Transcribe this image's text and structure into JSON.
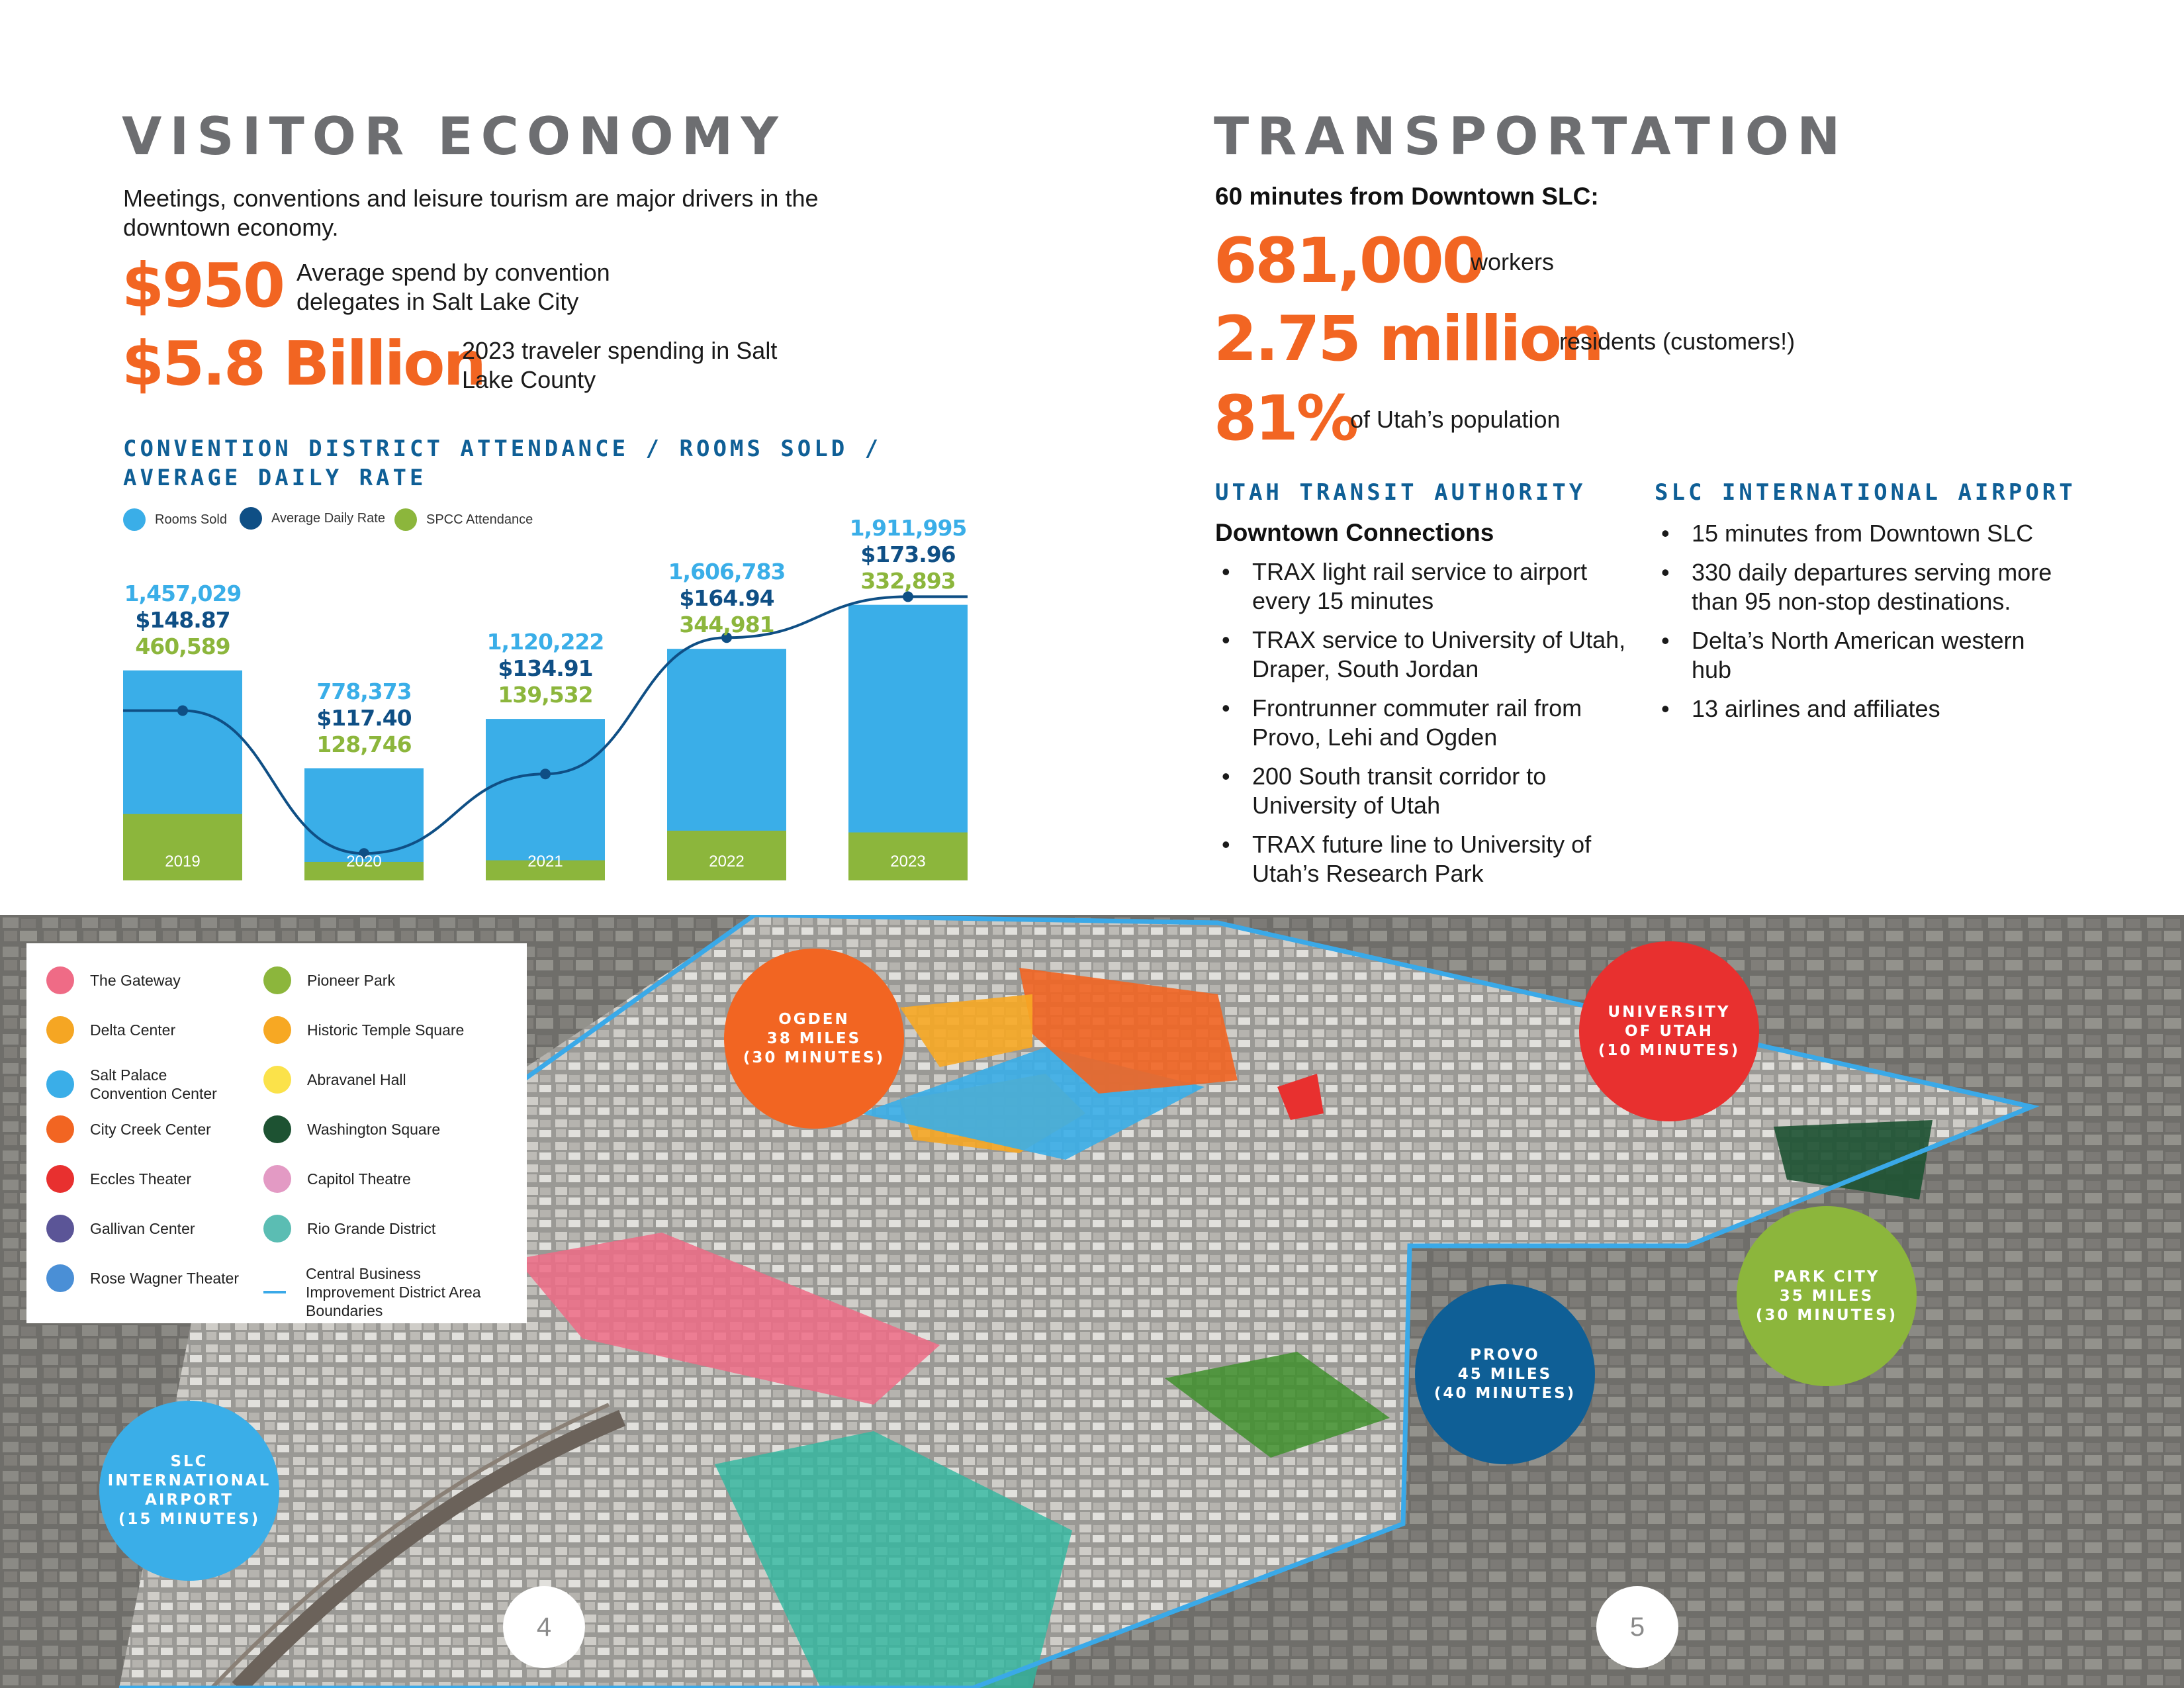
{
  "visitor": {
    "title": "VISITOR ECONOMY",
    "intro": "Meetings, conventions and leisure tourism are major drivers in the downtown economy.",
    "stat1": {
      "value": "$950",
      "desc": "Average spend by convention delegates in Salt Lake City"
    },
    "stat2": {
      "value": "$5.8 Billion",
      "desc": "2023 traveler spending in Salt Lake County"
    }
  },
  "chart_data": {
    "type": "bar",
    "title": "CONVENTION DISTRICT ATTENDANCE / ROOMS SOLD / AVERAGE DAILY RATE",
    "categories": [
      "2019",
      "2020",
      "2021",
      "2022",
      "2023"
    ],
    "series": [
      {
        "name": "Rooms Sold",
        "color": "#3aaee8",
        "values": [
          1457029,
          778373,
          1120222,
          1606783,
          1911995
        ],
        "labels": [
          "1,457,029",
          "778,373",
          "1,120,222",
          "1,606,783",
          "1,911,995"
        ]
      },
      {
        "name": "Average Daily Rate",
        "color": "#0f4f85",
        "values": [
          148.87,
          117.4,
          134.91,
          164.94,
          173.96
        ],
        "labels": [
          "$148.87",
          "$117.40",
          "$134.91",
          "$164.94",
          "$173.96"
        ]
      },
      {
        "name": "SPCC Attendance",
        "color": "#8cb63c",
        "values": [
          460589,
          128746,
          139532,
          344981,
          332893
        ],
        "labels": [
          "460,589",
          "128,746",
          "139,532",
          "344,981",
          "332,893"
        ]
      }
    ],
    "legend_position": "top-left",
    "grid": false
  },
  "transport": {
    "title": "TRANSPORTATION",
    "lead": "60 minutes from Downtown SLC:",
    "stats": [
      {
        "value": "681,000",
        "desc": "workers"
      },
      {
        "value": "2.75 million",
        "desc": "residents (customers!)"
      },
      {
        "value": "81%",
        "desc": "of Utah’s population"
      }
    ],
    "uta": {
      "heading": "UTAH TRANSIT AUTHORITY",
      "subheading": "Downtown Connections",
      "items": [
        "TRAX light rail service to airport every 15 minutes",
        "TRAX service to University of Utah, Draper, South Jordan",
        "Frontrunner commuter rail from Provo, Lehi and Ogden",
        "200 South transit corridor to University of Utah",
        "TRAX future line to University of Utah’s Research Park"
      ]
    },
    "airport": {
      "heading": "SLC INTERNATIONAL AIRPORT",
      "items": [
        "15 minutes from Downtown SLC",
        "330 daily departures serving more than 95 non-stop destinations.",
        "Delta’s North American western hub",
        "13 airlines and affiliates"
      ]
    }
  },
  "map": {
    "legend": [
      {
        "label": "The Gateway",
        "color": "#ef6b86"
      },
      {
        "label": "Pioneer Park",
        "color": "#8cb63c"
      },
      {
        "label": "Delta Center",
        "color": "#f5a623"
      },
      {
        "label": "Historic Temple Square",
        "color": "#f7a823"
      },
      {
        "label": "Salt Palace Convention Center",
        "color": "#3aaee8"
      },
      {
        "label": "Abravanel Hall",
        "color": "#fbe24a"
      },
      {
        "label": "City Creek Center",
        "color": "#f26522"
      },
      {
        "label": "Washington Square",
        "color": "#1d5232"
      },
      {
        "label": "Eccles Theater",
        "color": "#e8302f"
      },
      {
        "label": "Capitol Theatre",
        "color": "#e39ac4"
      },
      {
        "label": "Gallivan Center",
        "color": "#5b5597"
      },
      {
        "label": "Rio Grande District",
        "color": "#5bbdb3"
      },
      {
        "label": "Rose Wagner Theater",
        "color": "#4a8fd6"
      },
      {
        "label": "Central Business Improvement District Area Boundaries",
        "color": "#3aa9e8"
      }
    ],
    "destinations": [
      {
        "label": "OGDEN\n38 MILES\n(30 MINUTES)",
        "color": "#f26522"
      },
      {
        "label": "UNIVERSITY\nOF UTAH\n(10 MINUTES)",
        "color": "#e8302f"
      },
      {
        "label": "PARK CITY\n35 MILES\n(30 MINUTES)",
        "color": "#8cb63c"
      },
      {
        "label": "PROVO\n45 MILES\n(40 MINUTES)",
        "color": "#0f5f96"
      },
      {
        "label": "SLC\nINTERNATIONAL\nAIRPORT\n(15 MINUTES)",
        "color": "#3aaee8"
      }
    ]
  },
  "pages": {
    "left": "4",
    "right": "5"
  }
}
